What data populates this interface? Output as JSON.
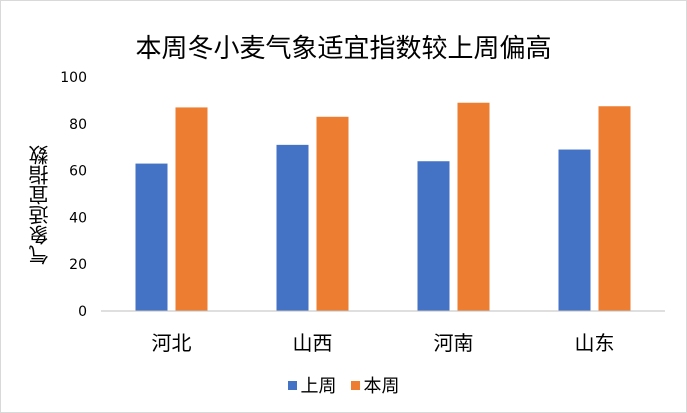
{
  "chart_data": {
    "type": "bar",
    "title": "本周冬小麦气象适宜指数较上周偏高",
    "ylabel": "气象适宜指数",
    "xlabel": "",
    "categories": [
      "河北",
      "山西",
      "河南",
      "山东"
    ],
    "ylim": [
      0,
      100
    ],
    "yticks": [
      "0",
      "20",
      "40",
      "60",
      "80",
      "100"
    ],
    "series": [
      {
        "name": "上周",
        "values": [
          63,
          71,
          64,
          69
        ],
        "color": "#4472c4"
      },
      {
        "name": "本周",
        "values": [
          87,
          83,
          89,
          87.5
        ],
        "color": "#ed7d31"
      }
    ],
    "grid": false,
    "legend_position": "bottom"
  }
}
